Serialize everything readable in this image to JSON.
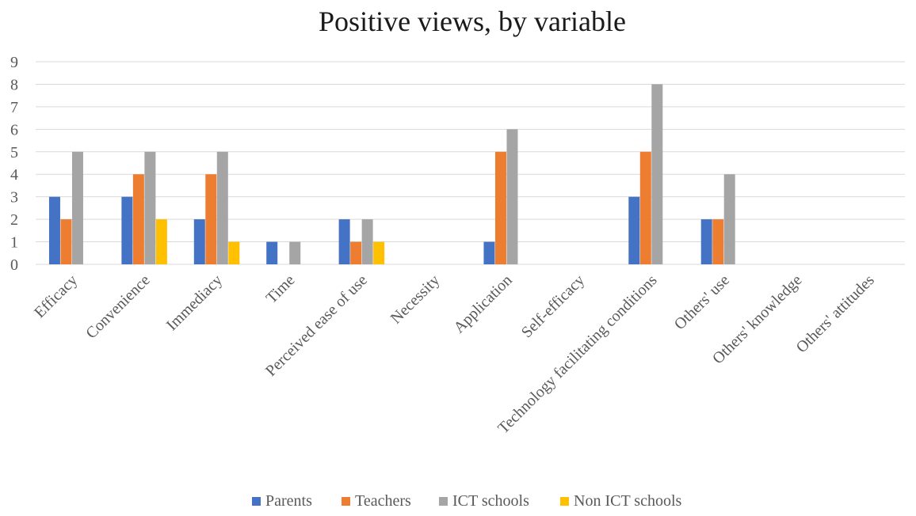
{
  "chart_data": {
    "type": "bar",
    "title": "Positive views, by variable",
    "xlabel": "",
    "ylabel": "",
    "ylim": [
      0,
      9
    ],
    "yticks": [
      0,
      1,
      2,
      3,
      4,
      5,
      6,
      7,
      8,
      9
    ],
    "grid": true,
    "legend_position": "bottom",
    "categories": [
      "Efficacy",
      "Convenience",
      "Immediacy",
      "Time",
      "Perceived ease of use",
      "Necessity",
      "Application",
      "Self-efficacy",
      "Technology facilitating conditions",
      "Others' use",
      "Others' knowledge",
      "Others' attitudes"
    ],
    "series": [
      {
        "name": "Parents",
        "color": "#4472c4",
        "values": [
          3,
          3,
          2,
          1,
          2,
          0,
          1,
          0,
          3,
          2,
          0,
          0
        ]
      },
      {
        "name": "Teachers",
        "color": "#ed7d31",
        "values": [
          2,
          4,
          4,
          0,
          1,
          0,
          5,
          0,
          5,
          2,
          0,
          0
        ]
      },
      {
        "name": "ICT schools",
        "color": "#a5a5a5",
        "values": [
          5,
          5,
          5,
          1,
          2,
          0,
          6,
          0,
          8,
          4,
          0,
          0
        ]
      },
      {
        "name": "Non ICT schools",
        "color": "#ffc000",
        "values": [
          0,
          2,
          1,
          0,
          1,
          0,
          0,
          0,
          0,
          0,
          0,
          0
        ]
      }
    ]
  }
}
